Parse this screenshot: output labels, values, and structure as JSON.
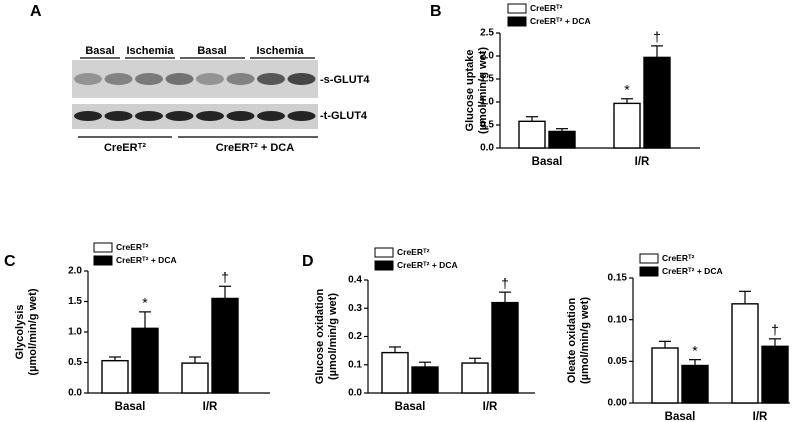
{
  "figure": {
    "panel_a": {
      "panel": "A",
      "lanes": [
        "Basal",
        "Ischemia",
        "Basal",
        "Ischemia"
      ],
      "bands": [
        "-s-GLUT4",
        "-t-GLUT4"
      ],
      "groups": [
        "CreERᵀ²",
        "CreERᵀ² + DCA"
      ]
    }
  },
  "chart_data": [
    {
      "type": "bar",
      "panel": "B",
      "ylabel": [
        "Glucose uptake",
        "(µmol/min/g wet)"
      ],
      "categories": [
        "Basal",
        "I/R"
      ],
      "series": [
        {
          "name": "CreERᵀ²",
          "color": "#ffffff",
          "values": [
            0.58,
            0.97
          ],
          "errors": [
            0.1,
            0.1
          ],
          "markers": [
            null,
            "*"
          ]
        },
        {
          "name": "CreERᵀ² + DCA",
          "color": "#000000",
          "values": [
            0.36,
            1.97
          ],
          "errors": [
            0.06,
            0.25
          ],
          "markers": [
            null,
            "†"
          ]
        }
      ],
      "ylim": [
        0,
        2.5
      ],
      "yticks": [
        {
          "value": 0,
          "label": "0.0"
        },
        0.5,
        {
          "value": 1,
          "label": "1.0"
        },
        1.5,
        {
          "value": 2,
          "label": "2.0"
        },
        2.5
      ]
    },
    {
      "type": "bar",
      "panel": "C",
      "ylabel": [
        "Glycolysis",
        "(µmol/min/g wet)"
      ],
      "categories": [
        "Basal",
        "I/R"
      ],
      "series": [
        {
          "name": "CreERᵀ²",
          "color": "#ffffff",
          "values": [
            0.53,
            0.49
          ],
          "errors": [
            0.06,
            0.1
          ],
          "markers": [
            null,
            null
          ]
        },
        {
          "name": "CreERᵀ² + DCA",
          "color": "#000000",
          "values": [
            1.06,
            1.55
          ],
          "errors": [
            0.27,
            0.2
          ],
          "markers": [
            "*",
            "†"
          ]
        }
      ],
      "ylim": [
        0,
        2
      ],
      "yticks": [
        {
          "value": 0,
          "label": "0.0"
        },
        0.5,
        {
          "value": 1,
          "label": "1.0"
        },
        1.5,
        {
          "value": 2,
          "label": "2.0"
        }
      ]
    },
    {
      "type": "bar",
      "panel": "D",
      "ylabel": [
        "Glucose oxidation",
        "(µmol/min/g wet)"
      ],
      "categories": [
        "Basal",
        "I/R"
      ],
      "series": [
        {
          "name": "CreERᵀ²",
          "color": "#ffffff",
          "values": [
            0.143,
            0.106
          ],
          "errors": [
            0.02,
            0.017
          ],
          "markers": [
            null,
            null
          ]
        },
        {
          "name": "CreERᵀ² + DCA",
          "color": "#000000",
          "values": [
            0.092,
            0.32
          ],
          "errors": [
            0.017,
            0.037
          ],
          "markers": [
            null,
            "†"
          ]
        }
      ],
      "ylim": [
        0,
        0.4
      ],
      "yticks": [
        {
          "value": 0,
          "label": "0.0"
        },
        0.1,
        0.2,
        0.3,
        0.4
      ]
    },
    {
      "type": "bar",
      "ylabel": [
        "Oleate oxidation",
        "(µmol/min/g wet)"
      ],
      "categories": [
        "Basal",
        "I/R"
      ],
      "series": [
        {
          "name": "CreERᵀ²",
          "color": "#ffffff",
          "values": [
            0.066,
            0.119
          ],
          "errors": [
            0.008,
            0.015
          ],
          "markers": [
            null,
            null
          ]
        },
        {
          "name": "CreERᵀ² + DCA",
          "color": "#000000",
          "values": [
            0.045,
            0.068
          ],
          "errors": [
            0.007,
            0.009
          ],
          "markers": [
            "*",
            "†"
          ]
        }
      ],
      "ylim": [
        0,
        0.15
      ],
      "yticks": [
        {
          "value": 0,
          "label": "0.00"
        },
        0.05,
        {
          "value": 0.1,
          "label": "0.10"
        },
        0.15
      ]
    }
  ]
}
